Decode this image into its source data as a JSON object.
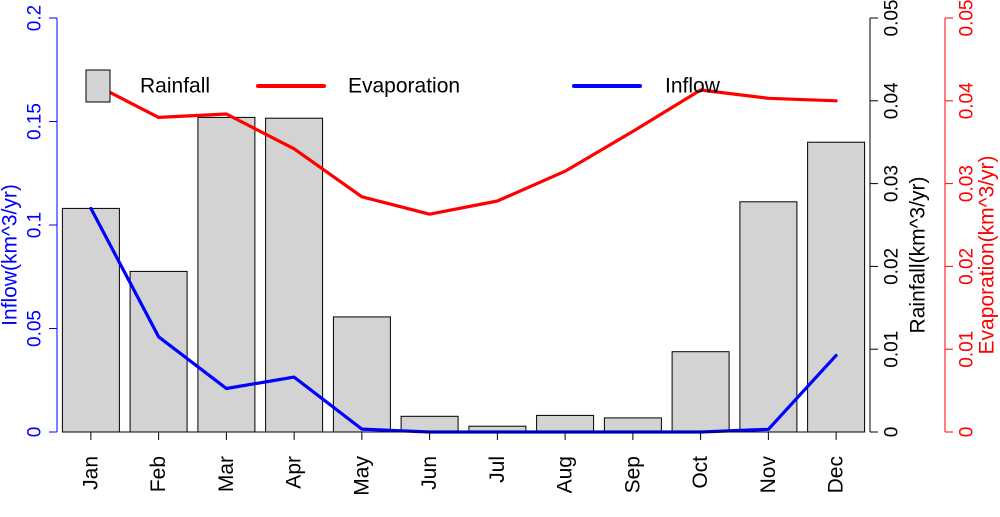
{
  "chart_data": {
    "type": "bar",
    "categories": [
      "Jan",
      "Feb",
      "Mar",
      "Apr",
      "May",
      "Jun",
      "Jul",
      "Aug",
      "Sep",
      "Oct",
      "Nov",
      "Dec"
    ],
    "series": [
      {
        "name": "Rainfall",
        "type": "bar",
        "axis": "right-inner",
        "color": "#d3d3d3",
        "values": [
          0.027,
          0.0194,
          0.038,
          0.0379,
          0.0139,
          0.0019,
          0.0007,
          0.002,
          0.0017,
          0.0097,
          0.0278,
          0.035
        ]
      },
      {
        "name": "Evaporation",
        "type": "line",
        "axis": "right-outer",
        "color": "#ff0000",
        "values": [
          0.0422,
          0.038,
          0.0384,
          0.0342,
          0.0284,
          0.0263,
          0.0279,
          0.0315,
          0.0363,
          0.0413,
          0.0403,
          0.04
        ]
      },
      {
        "name": "Inflow",
        "type": "line",
        "axis": "left",
        "color": "#0000ff",
        "values": [
          0.108,
          0.046,
          0.021,
          0.0265,
          0.0014,
          0.0,
          0.0,
          0.0,
          0.0,
          0.0,
          0.0013,
          0.037
        ]
      }
    ],
    "axes": {
      "left": {
        "label": "Inflow(km^3/yr)",
        "color": "#0000ff",
        "ylim": [
          0,
          0.2
        ],
        "ticks": [
          0,
          0.05,
          0.1,
          0.15,
          0.2
        ],
        "tick_labels": [
          "0",
          "0.05",
          "0.1",
          "0.15",
          "0.2"
        ]
      },
      "right_inner": {
        "label": "Rainfall(km^3/yr)",
        "color": "#000000",
        "ylim": [
          0,
          0.05
        ],
        "ticks": [
          0,
          0.01,
          0.02,
          0.03,
          0.04,
          0.05
        ],
        "tick_labels": [
          "0",
          "0.01",
          "0.02",
          "0.03",
          "0.04",
          "0.05"
        ]
      },
      "right_outer": {
        "label": "Evaporation(km^3/yr)",
        "color": "#ff0000",
        "ylim": [
          0,
          0.05
        ],
        "ticks": [
          0,
          0.01,
          0.02,
          0.03,
          0.04,
          0.05
        ],
        "tick_labels": [
          "0",
          "0.01",
          "0.02",
          "0.03",
          "0.04",
          "0.05"
        ]
      }
    },
    "legend": {
      "placement": "top",
      "entries": [
        "Rainfall",
        "Evaporation",
        "Inflow"
      ]
    },
    "grid": false,
    "title": "",
    "xlabel": ""
  }
}
